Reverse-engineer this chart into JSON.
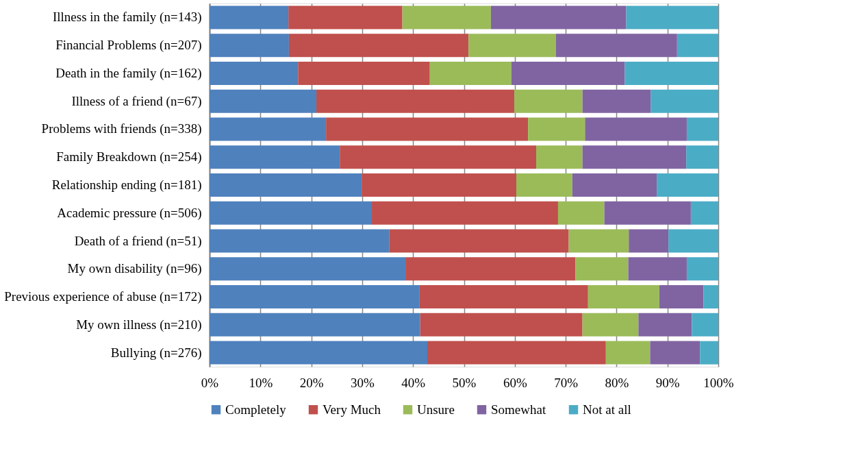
{
  "chart_data": {
    "type": "bar",
    "orientation": "horizontal",
    "stacked": true,
    "categories": [
      "Illness in the family (n=143)",
      "Financial Problems (n=207)",
      "Death in the family (n=162)",
      "Illness of a friend (n=67)",
      "Problems with friends (n=338)",
      "Family Breakdown (n=254)",
      "Relationship ending (n=181)",
      "Academic pressure (n=506)",
      "Death of a friend (n=51)",
      "My own disability (n=96)",
      "Previous experience of abuse (n=172)",
      "My own illness (n=210)",
      "Bullying (n=276)"
    ],
    "series": [
      {
        "name": "Completely",
        "color": "#4f81bd",
        "values": [
          15.5,
          15.6,
          17.4,
          21.0,
          22.9,
          25.6,
          29.9,
          31.9,
          35.3,
          38.5,
          41.3,
          41.4,
          42.8
        ]
      },
      {
        "name": "Very Much",
        "color": "#c0504d",
        "values": [
          22.4,
          35.3,
          25.9,
          38.9,
          39.7,
          38.6,
          30.4,
          36.6,
          35.3,
          33.4,
          33.1,
          31.9,
          35.1
        ]
      },
      {
        "name": "Unsure",
        "color": "#9bbb59",
        "values": [
          17.4,
          17.2,
          16.0,
          13.4,
          11.2,
          9.1,
          11.0,
          9.1,
          11.8,
          10.4,
          14.0,
          11.0,
          8.7
        ]
      },
      {
        "name": "Somewhat",
        "color": "#8064a2",
        "values": [
          26.6,
          23.8,
          22.3,
          13.4,
          20.0,
          20.4,
          16.6,
          17.0,
          7.8,
          11.5,
          8.7,
          10.5,
          9.8
        ]
      },
      {
        "name": "Not at all",
        "color": "#4bacc6",
        "values": [
          18.1,
          8.1,
          18.4,
          13.3,
          6.2,
          6.3,
          12.1,
          5.4,
          9.8,
          6.2,
          2.9,
          5.2,
          3.6
        ]
      }
    ],
    "xlim": [
      0,
      100
    ],
    "xticks": [
      {
        "value": 0,
        "label": "0%"
      },
      {
        "value": 10,
        "label": "10%"
      },
      {
        "value": 20,
        "label": "20%"
      },
      {
        "value": 30,
        "label": "30%"
      },
      {
        "value": 40,
        "label": "40%"
      },
      {
        "value": 50,
        "label": "50%"
      },
      {
        "value": 60,
        "label": "60%"
      },
      {
        "value": 70,
        "label": "70%"
      },
      {
        "value": 80,
        "label": "80%"
      },
      {
        "value": 90,
        "label": "90%"
      },
      {
        "value": 100,
        "label": "100%"
      }
    ],
    "grid": "x",
    "legend": "bottom"
  }
}
